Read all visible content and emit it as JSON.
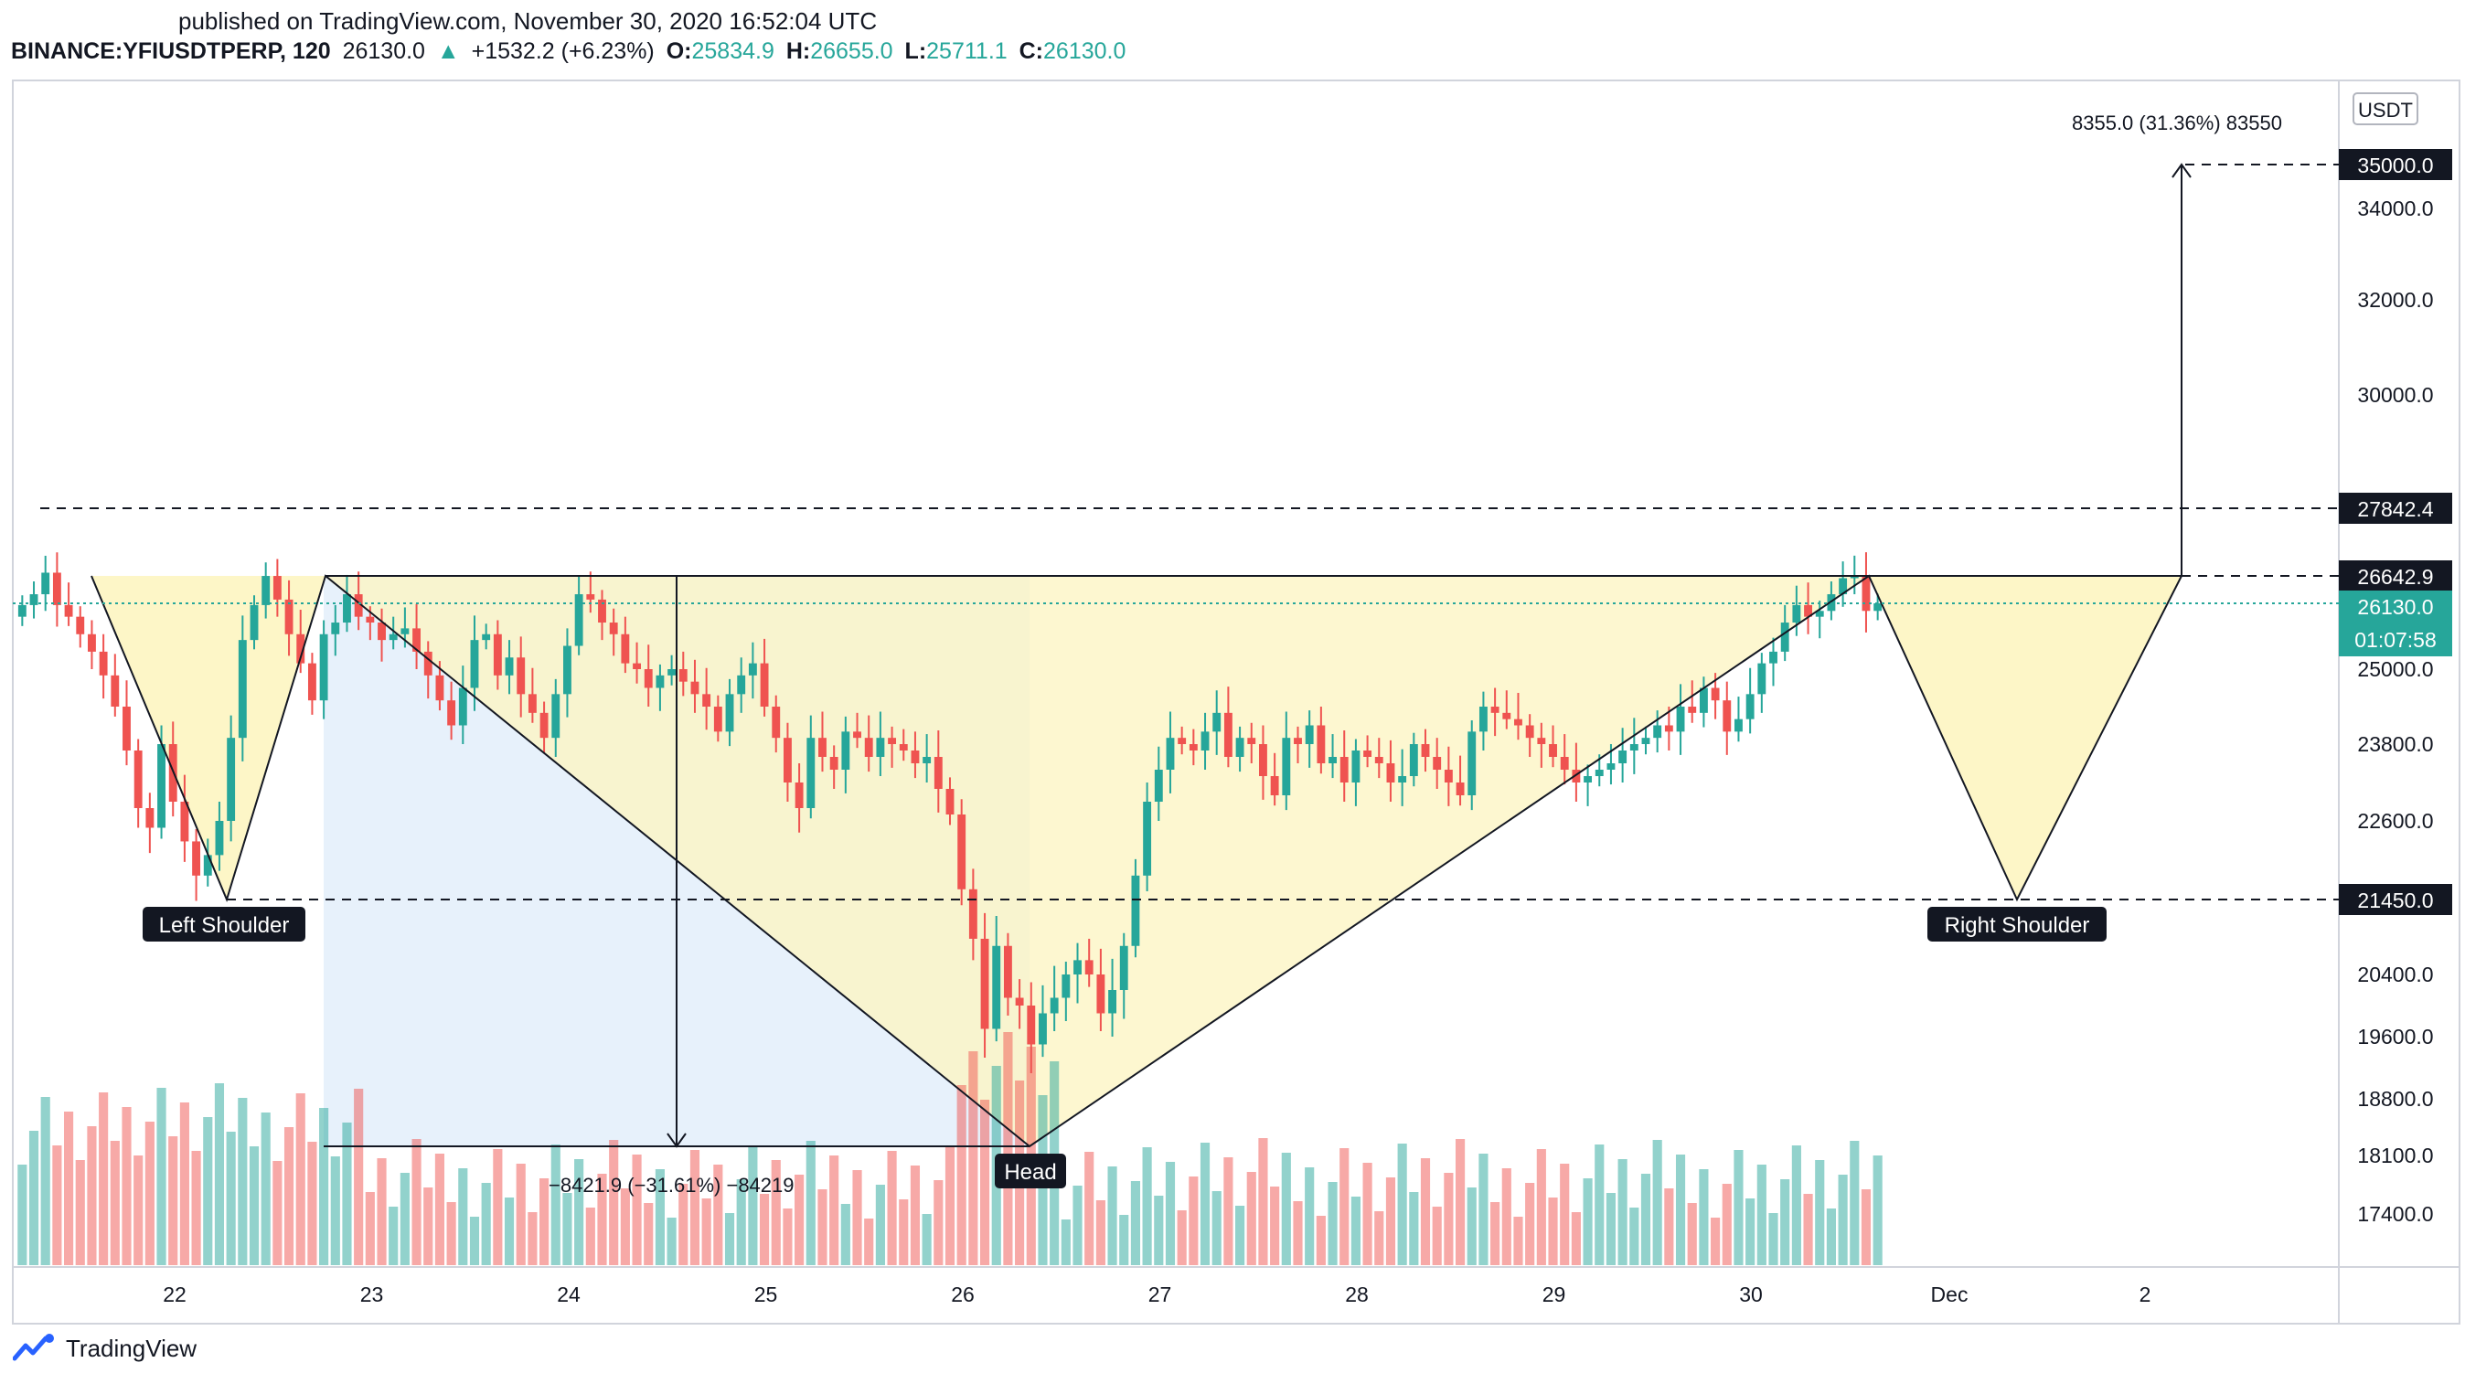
{
  "header": {
    "published": "published on TradingView.com, November 30, 2020 16:52:04 UTC",
    "symbol": "BINANCE:YFIUSDTPERP, 120",
    "last": "26130.0",
    "change_arrow": "▲",
    "change": "+1532.2 (+6.23%)",
    "o_label": "O:",
    "o": "25834.9",
    "h_label": "H:",
    "h": "26655.0",
    "l_label": "L:",
    "l": "25711.1",
    "c_label": "C:",
    "c": "26130.0"
  },
  "footer": {
    "brand": "TradingView",
    "logo_icon": "tradingview-logo-icon"
  },
  "colors": {
    "up": "#26a69a",
    "down": "#ef5350",
    "pattern_fill": "#fdf5c4",
    "measure_fill": "#e3effa",
    "price_label_bg": "#131722",
    "current_price_bg": "#26a69a"
  },
  "chart_data": {
    "type": "candlestick",
    "currency_label": "USDT",
    "y_ticks": [
      "34000.0",
      "32000.0",
      "30000.0",
      "25000.0",
      "23800.0",
      "22600.0",
      "20400.0",
      "19600.0",
      "18800.0",
      "18100.0",
      "17400.0"
    ],
    "x_ticks": [
      "22",
      "23",
      "24",
      "25",
      "26",
      "27",
      "28",
      "29",
      "30",
      "Dec",
      "2"
    ],
    "price_levels": [
      {
        "label": "35000.0",
        "value": 35000,
        "style": "dashed"
      },
      {
        "label": "27842.4",
        "value": 27842.4,
        "style": "dashed"
      },
      {
        "label": "26642.9",
        "value": 26642.9,
        "style": "dashed"
      },
      {
        "label": "21450.0",
        "value": 21450,
        "style": "dashed"
      }
    ],
    "current_price": {
      "label": "26130.0",
      "countdown": "01:07:58",
      "value": 26130
    },
    "annotations": {
      "left_shoulder": "Left Shoulder",
      "head": "Head",
      "right_shoulder": "Right Shoulder",
      "measure_down": "−8421.9 (−31.61%) −84219",
      "measure_up": "8355.0 (31.36%) 83550"
    },
    "pattern": "inverse head and shoulders",
    "candles_summary": {
      "start": "Nov 21",
      "end": "Nov 30 16:00",
      "open_first": 26100,
      "low_left_shoulder": 21450,
      "high_neckline": 26642.9,
      "low_head": 18221,
      "last_close": 26130
    }
  }
}
